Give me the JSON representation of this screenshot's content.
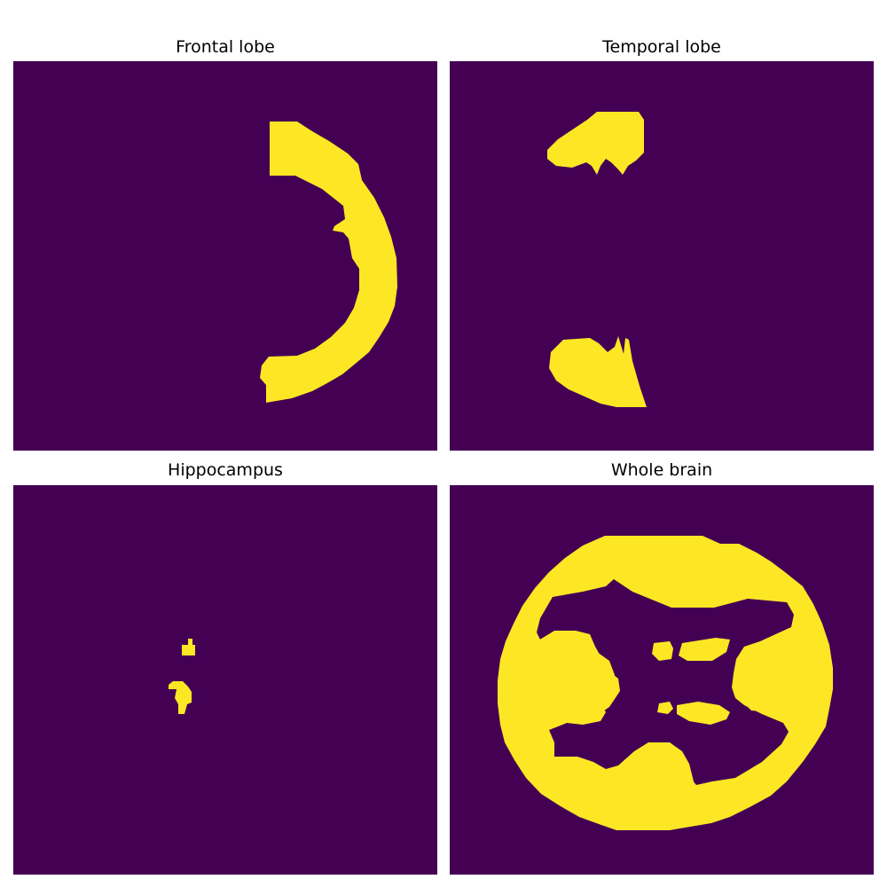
{
  "panels": [
    {
      "title": "Frontal lobe"
    },
    {
      "title": "Temporal lobe"
    },
    {
      "title": "Hippocampus"
    },
    {
      "title": "Whole brain"
    }
  ],
  "colors": {
    "background": "#440154",
    "mask": "#fde725"
  }
}
